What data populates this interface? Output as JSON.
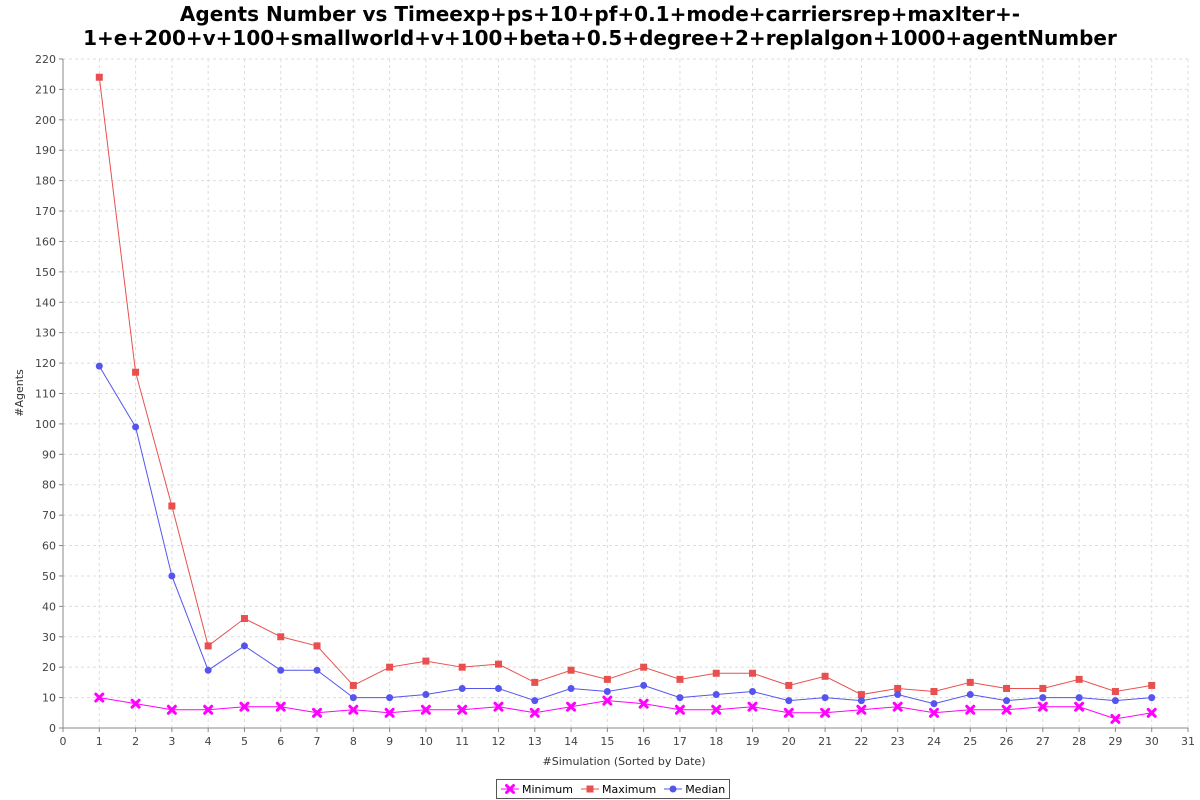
{
  "chart_data": {
    "type": "line",
    "title_lines": [
      "Agents Number vs Timeexp+ps+10+pf+0.1+mode+carriersrep+maxIter+-",
      "1+e+200+v+100+smallworld+v+100+beta+0.5+degree+2+replalgon+1000+agentNumber"
    ],
    "xlabel": "#Simulation (Sorted by Date)",
    "ylabel": "#Agents",
    "xlim": [
      0,
      31
    ],
    "ylim": [
      0,
      220
    ],
    "x_ticks": [
      0,
      1,
      2,
      3,
      4,
      5,
      6,
      7,
      8,
      9,
      10,
      11,
      12,
      13,
      14,
      15,
      16,
      17,
      18,
      19,
      20,
      21,
      22,
      23,
      24,
      25,
      26,
      27,
      28,
      29,
      30,
      31
    ],
    "y_ticks": [
      0,
      10,
      20,
      30,
      40,
      50,
      60,
      70,
      80,
      90,
      100,
      110,
      120,
      130,
      140,
      150,
      160,
      170,
      180,
      190,
      200,
      210,
      220
    ],
    "grid": true,
    "legend_position": "bottom",
    "x": [
      1,
      2,
      3,
      4,
      5,
      6,
      7,
      8,
      9,
      10,
      11,
      12,
      13,
      14,
      15,
      16,
      17,
      18,
      19,
      20,
      21,
      22,
      23,
      24,
      25,
      26,
      27,
      28,
      29,
      30
    ],
    "series": [
      {
        "name": "Minimum",
        "color": "#ff00ff",
        "marker": "x",
        "values": [
          10,
          8,
          6,
          6,
          7,
          7,
          5,
          6,
          5,
          6,
          6,
          7,
          5,
          7,
          9,
          8,
          6,
          6,
          7,
          5,
          5,
          6,
          7,
          5,
          6,
          6,
          7,
          7,
          3,
          5
        ]
      },
      {
        "name": "Maximum",
        "color": "#e85050",
        "marker": "square",
        "values": [
          214,
          117,
          73,
          27,
          36,
          30,
          27,
          14,
          20,
          22,
          20,
          21,
          15,
          19,
          16,
          20,
          16,
          18,
          18,
          14,
          17,
          11,
          13,
          12,
          15,
          13,
          13,
          16,
          12,
          14
        ]
      },
      {
        "name": "Median",
        "color": "#5555ee",
        "marker": "circle",
        "values": [
          119,
          99,
          50,
          19,
          27,
          19,
          19,
          10,
          10,
          11,
          13,
          13,
          9,
          13,
          12,
          14,
          10,
          11,
          12,
          9,
          10,
          9,
          11,
          8,
          11,
          9,
          10,
          10,
          9,
          10
        ]
      }
    ]
  }
}
